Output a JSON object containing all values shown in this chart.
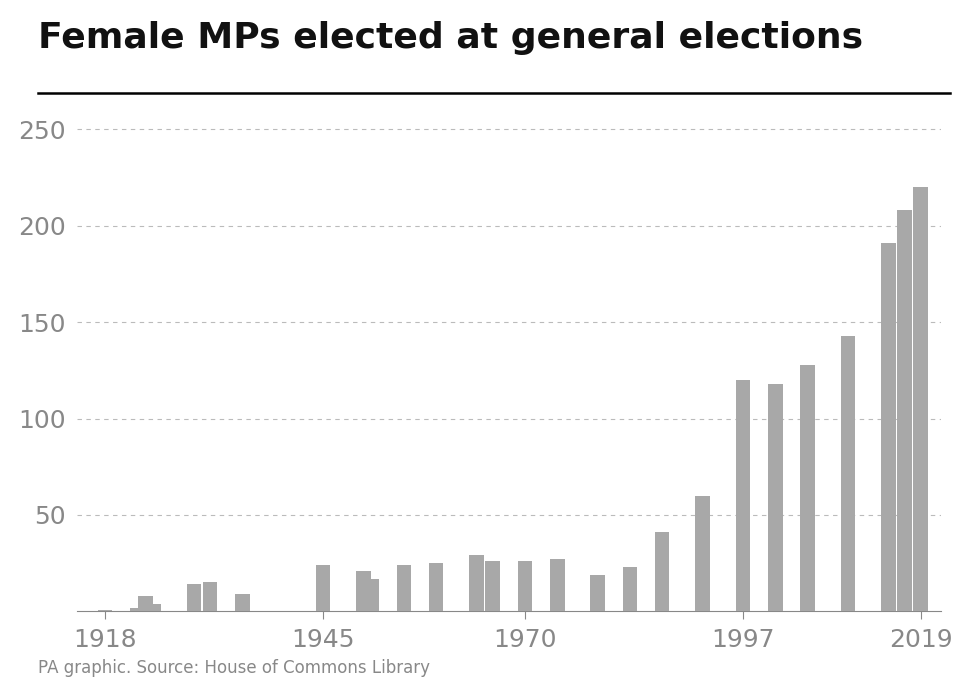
{
  "title": "Female MPs elected at general elections",
  "source_text": "PA graphic. Source: House of Commons Library",
  "years": [
    1918,
    1922,
    1923,
    1924,
    1929,
    1931,
    1935,
    1945,
    1950,
    1951,
    1955,
    1959,
    1964,
    1966,
    1970,
    1974,
    1974,
    1979,
    1983,
    1987,
    1992,
    1997,
    2001,
    2005,
    2010,
    2015,
    2017,
    2019
  ],
  "values": [
    1,
    2,
    8,
    4,
    14,
    15,
    9,
    24,
    21,
    17,
    24,
    25,
    29,
    26,
    26,
    23,
    27,
    19,
    23,
    41,
    60,
    120,
    118,
    128,
    143,
    191,
    208,
    220
  ],
  "bar_color": "#a8a8a8",
  "background_color": "#ffffff",
  "title_fontsize": 26,
  "yticks": [
    50,
    100,
    150,
    200,
    250
  ],
  "ylim": [
    0,
    260
  ],
  "xtick_labels": [
    "1918",
    "1945",
    "1970",
    "1997",
    "2019"
  ],
  "xtick_years": [
    1918,
    1945,
    1970,
    1997,
    2019
  ],
  "grid_color": "#aaaaaa",
  "tick_color": "#888888",
  "label_fontsize": 18,
  "source_fontsize": 12
}
